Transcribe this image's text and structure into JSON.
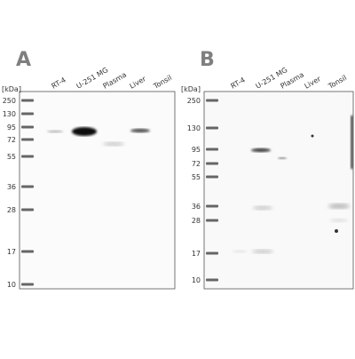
{
  "panels": [
    {
      "letter": "A",
      "unit": "[kDa]",
      "markers": [
        "250",
        "130",
        "95",
        "72",
        "55",
        "36",
        "28",
        "17",
        "10"
      ],
      "lanes": [
        "RT-4",
        "U-251 MG",
        "Plasma",
        "Liver",
        "Tonsil"
      ]
    },
    {
      "letter": "B",
      "unit": "[kDa]",
      "markers": [
        "250",
        "130",
        "95",
        "72",
        "55",
        "36",
        "28",
        "17",
        "10"
      ],
      "lanes": [
        "RT-4",
        "U-251 MG",
        "Plasma",
        "Liver",
        "Tonsil"
      ]
    }
  ]
}
